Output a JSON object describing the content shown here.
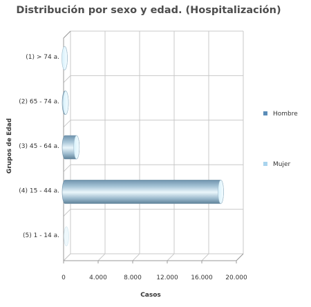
{
  "chart_data": {
    "type": "bar",
    "orientation": "horizontal",
    "style": "3d-cylinder",
    "title": "Distribución por sexo y edad. (Hospitalización)",
    "xlabel": "Casos",
    "ylabel": "Grupos de Edad",
    "categories": [
      "(1) > 74 a.",
      "(2) 65 - 74 a.",
      "(3) 45 - 64 a.",
      "(4) 15 - 44 a.",
      "(5) 1 - 14 a."
    ],
    "series": [
      {
        "name": "Hombre",
        "color": "#5b8db8",
        "values": [
          120,
          240,
          1500,
          18200,
          0
        ]
      },
      {
        "name": "Mujer",
        "color": "#a9d4ee",
        "values": [
          0,
          0,
          0,
          0,
          0
        ]
      }
    ],
    "xlim": [
      0,
      20000
    ],
    "ticks": [
      0,
      4000,
      8000,
      12000,
      16000,
      20000
    ],
    "tick_labels": [
      "0",
      "4.000",
      "8.000",
      "12.000",
      "16.000",
      "20.000"
    ],
    "grid": true,
    "legend_position": "right"
  }
}
